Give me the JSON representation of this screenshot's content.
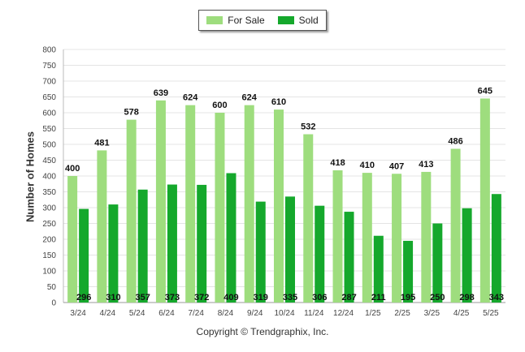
{
  "chart_data": {
    "type": "bar",
    "title": "",
    "xlabel": "",
    "ylabel": "Number of Homes",
    "ylim": [
      0,
      800
    ],
    "yticks": [
      0,
      50,
      100,
      150,
      200,
      250,
      300,
      350,
      400,
      450,
      500,
      550,
      600,
      650,
      700,
      750,
      800
    ],
    "grid": true,
    "legend_position": "top-center",
    "categories": [
      "3/24",
      "4/24",
      "5/24",
      "6/24",
      "7/24",
      "8/24",
      "9/24",
      "10/24",
      "11/24",
      "12/24",
      "1/25",
      "2/25",
      "3/25",
      "4/25",
      "5/25"
    ],
    "series": [
      {
        "name": "For Sale",
        "color": "#9edd7e",
        "values": [
          400,
          481,
          578,
          639,
          624,
          600,
          624,
          610,
          532,
          418,
          410,
          407,
          413,
          486,
          645
        ]
      },
      {
        "name": "Sold",
        "color": "#15a82c",
        "values": [
          296,
          310,
          357,
          373,
          372,
          409,
          319,
          335,
          306,
          287,
          211,
          195,
          250,
          298,
          343
        ]
      }
    ]
  },
  "credit": "Copyright © Trendgraphix, Inc."
}
